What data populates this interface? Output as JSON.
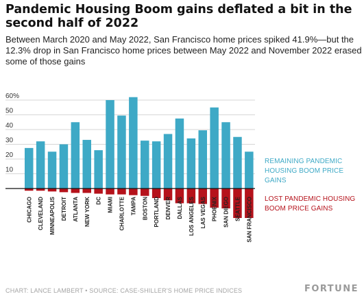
{
  "header": {
    "title": "Pandemic Housing Boom gains deflated a bit in the second half of 2022",
    "subtitle": "Between March 2020 and May 2022, San Francisco home prices spiked 41.9%—but the 12.3% drop in San Francisco home prices between May 2022 and November 2022 erased some of those gains"
  },
  "legend": {
    "remaining": "REMAINING PANDEMIC HOUSING BOOM PRICE GAINS",
    "lost": "LOST PANDEMIC HOUSING BOOM PRICE GAINS"
  },
  "footer": {
    "credit": "CHART: LANCE LAMBERT • SOURCE: CASE-SHILLER'S HOME PRICE INDICES",
    "brand": "FORTUNE"
  },
  "colors": {
    "remaining": "#3ea9c6",
    "lost": "#b5121b",
    "grid": "#d6d6d6",
    "axis": "#111111"
  },
  "chart_data": {
    "type": "bar",
    "categories": [
      "CHICAGO",
      "CLEVELAND",
      "MINNEAPOLIS",
      "DETROIT",
      "ATLANTA",
      "NEW YORK",
      "DC",
      "MIAMI",
      "CHARLOTTE",
      "TAMPA",
      "BOSTON",
      "PORTLAND",
      "DENVER",
      "DALLAS",
      "LOS ANGELES",
      "LAS VEGAS",
      "PHOENIX",
      "SAN DIEGO",
      "SEATTLE",
      "SAN FRANCISCO"
    ],
    "series": [
      {
        "name": "REMAINING PANDEMIC HOUSING BOOM PRICE GAINS",
        "values": [
          27.5,
          32.0,
          25.0,
          30.0,
          45.0,
          33.0,
          26.0,
          60.0,
          49.5,
          62.0,
          32.5,
          32.0,
          37.0,
          47.5,
          34.0,
          39.5,
          55.0,
          45.0,
          35.0,
          25.0
        ]
      },
      {
        "name": "LOST PANDEMIC HOUSING BOOM PRICE GAINS",
        "values": [
          -1.5,
          -1.5,
          -2.0,
          -2.5,
          -3.0,
          -3.0,
          -3.5,
          -4.0,
          -4.0,
          -4.5,
          -5.0,
          -6.5,
          -8.0,
          -10.0,
          -10.0,
          -10.5,
          -13.0,
          -13.5,
          -20.0,
          -20.0
        ]
      }
    ],
    "yticks": [
      10,
      20,
      30,
      40,
      50,
      60
    ],
    "ytick_labels": [
      "10",
      "20",
      "30",
      "40",
      "50",
      "60%"
    ],
    "ylim": [
      -25,
      70
    ],
    "grid": true,
    "legend_position": "right"
  }
}
